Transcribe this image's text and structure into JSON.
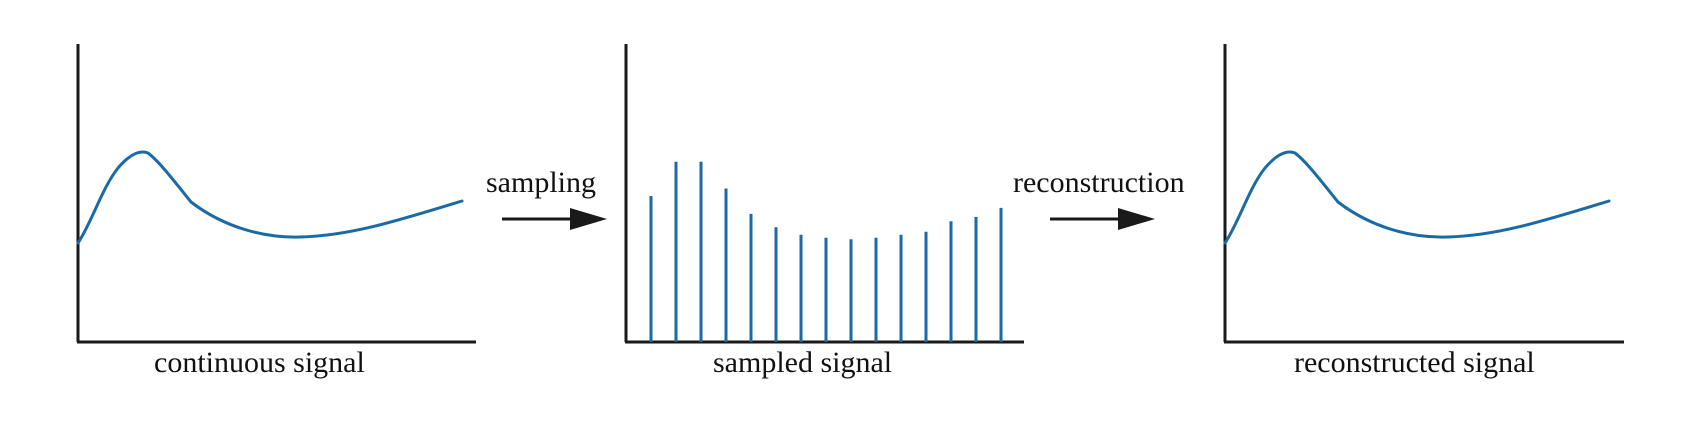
{
  "labels": {
    "continuous": "continuous signal",
    "sampled": "sampled signal",
    "reconstructed": "reconstructed signal",
    "sampling": "sampling",
    "reconstruction": "reconstruction"
  },
  "colors": {
    "signal": "#1a6aa6",
    "axis": "#1a1a1a",
    "arrow": "#1a1a1a"
  },
  "sampled_values": [
    0.49,
    0.605,
    0.605,
    0.515,
    0.43,
    0.385,
    0.36,
    0.35,
    0.345,
    0.35,
    0.36,
    0.37,
    0.405,
    0.42,
    0.45
  ]
}
